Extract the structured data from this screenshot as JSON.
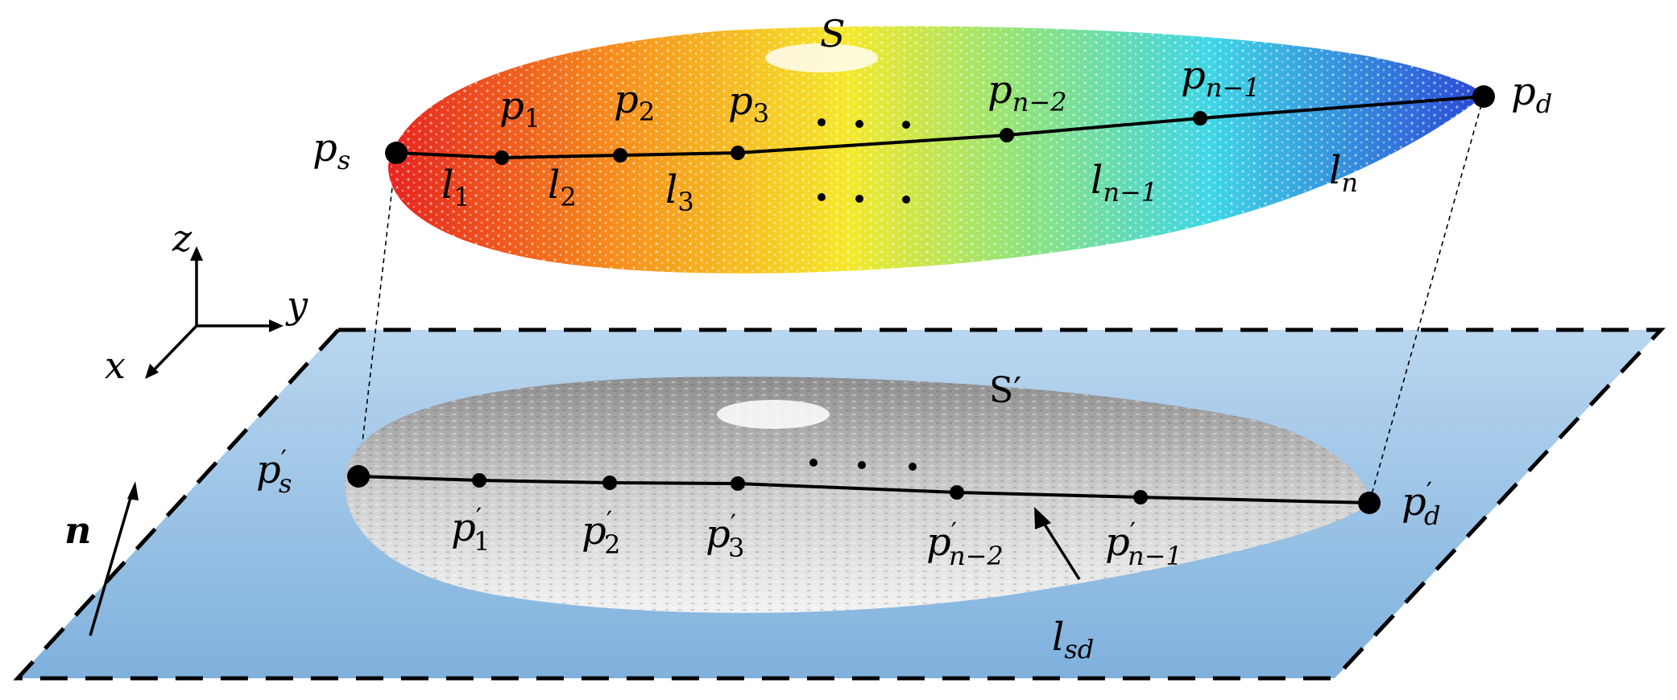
{
  "labels": {
    "S": "S",
    "S_prime": "S′",
    "p_s": {
      "base": "p",
      "sub": "s"
    },
    "p_d": {
      "base": "p",
      "sub": "d"
    },
    "p_1": {
      "base": "p",
      "sub": "1"
    },
    "p_2": {
      "base": "p",
      "sub": "2"
    },
    "p_3": {
      "base": "p",
      "sub": "3"
    },
    "p_n2": {
      "base": "p",
      "sub": "n−2"
    },
    "p_n1": {
      "base": "p",
      "sub": "n−1"
    },
    "l_1": {
      "base": "l",
      "sub": "1"
    },
    "l_2": {
      "base": "l",
      "sub": "2"
    },
    "l_3": {
      "base": "l",
      "sub": "3"
    },
    "l_n1": {
      "base": "l",
      "sub": "n−1"
    },
    "l_n": {
      "base": "l",
      "sub": "n"
    },
    "ps_prime": {
      "base": "p",
      "prime": "′",
      "sub": "s"
    },
    "pd_prime": {
      "base": "p",
      "prime": "′",
      "sub": "d"
    },
    "p1_prime": {
      "base": "p",
      "prime": "′",
      "sub": "1"
    },
    "p2_prime": {
      "base": "p",
      "prime": "′",
      "sub": "2"
    },
    "p3_prime": {
      "base": "p",
      "prime": "′",
      "sub": "3"
    },
    "pn2_prime": {
      "base": "p",
      "prime": "′",
      "sub": "n−2"
    },
    "pn1_prime": {
      "base": "p",
      "prime": "′",
      "sub": "n−1"
    },
    "l_sd": {
      "base": "l",
      "sub": "sd"
    },
    "axis_x": "x",
    "axis_y": "y",
    "axis_z": "z",
    "normal": "n"
  },
  "colors": {
    "plane_top": "#b9d6ef",
    "plane_bottom": "#7fb1dd",
    "leaf_red": "#e8231f",
    "leaf_orange": "#f7941d",
    "leaf_yellow": "#f5e92a",
    "leaf_green": "#8fe37e",
    "leaf_cyan": "#3fd6e6",
    "leaf_blue": "#2b47d6",
    "gray_light": "#f2f2f2",
    "gray_dark": "#8e8e8e"
  }
}
